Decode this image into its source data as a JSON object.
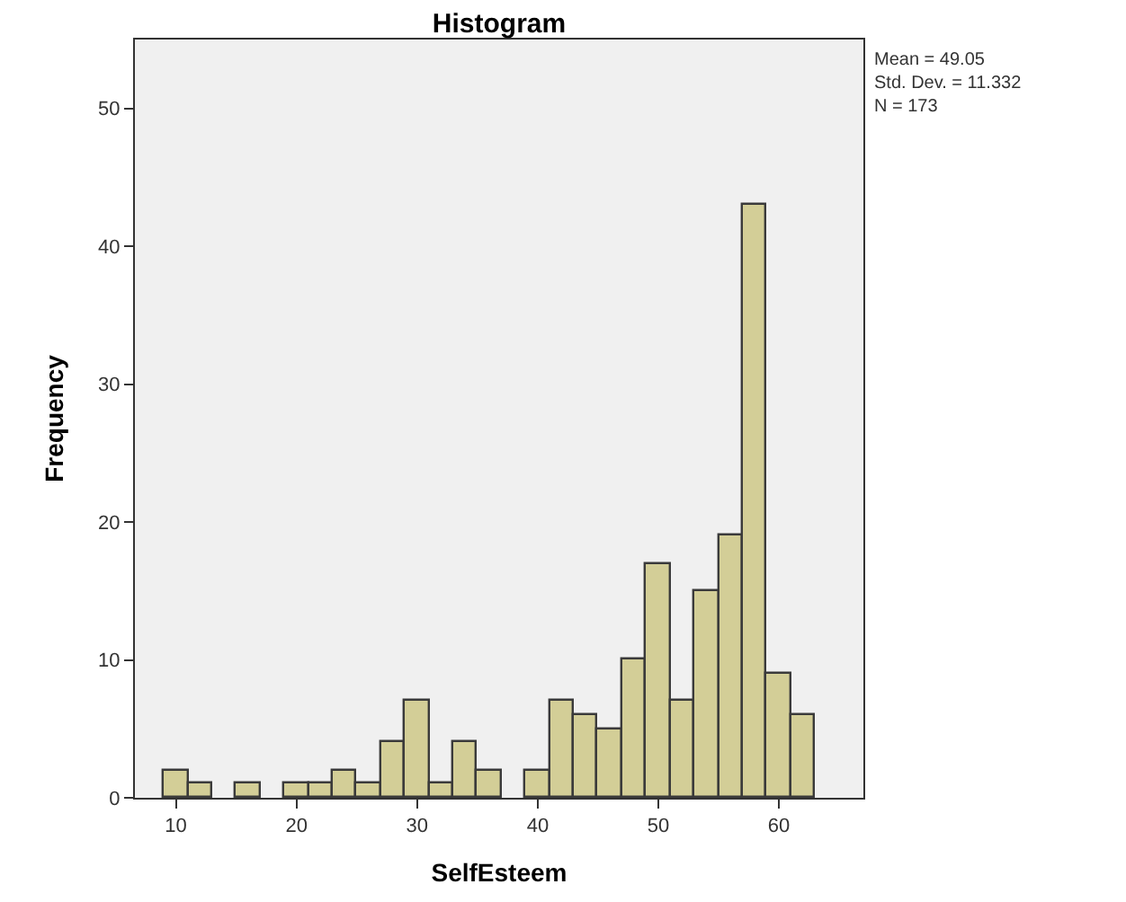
{
  "chart_data": {
    "type": "histogram",
    "title": "Histogram",
    "xlabel": "SelfEsteem",
    "ylabel": "Frequency",
    "bins": [
      9,
      11,
      13,
      15,
      17,
      19,
      21,
      23,
      25,
      27,
      29,
      31,
      33,
      35,
      37,
      39,
      41,
      43,
      45,
      47,
      49,
      51,
      53,
      55,
      57,
      59,
      61,
      63
    ],
    "values": [
      2,
      1,
      0,
      1,
      0,
      1,
      1,
      2,
      1,
      4,
      7,
      1,
      4,
      2,
      0,
      2,
      7,
      6,
      5,
      10,
      17,
      7,
      15,
      19,
      43,
      9,
      6
    ],
    "color": "#d3ce97",
    "xlim": [
      6.6,
      67
    ],
    "xticks": [
      10,
      20,
      30,
      40,
      50,
      60
    ],
    "ylim": [
      0,
      55
    ],
    "yticks": [
      0,
      10,
      20,
      30,
      40,
      50
    ],
    "grid": false,
    "legend": false,
    "annotations": [
      "Mean = 49.05\nStd. Dev. = 11.332\nN = 173"
    ]
  }
}
